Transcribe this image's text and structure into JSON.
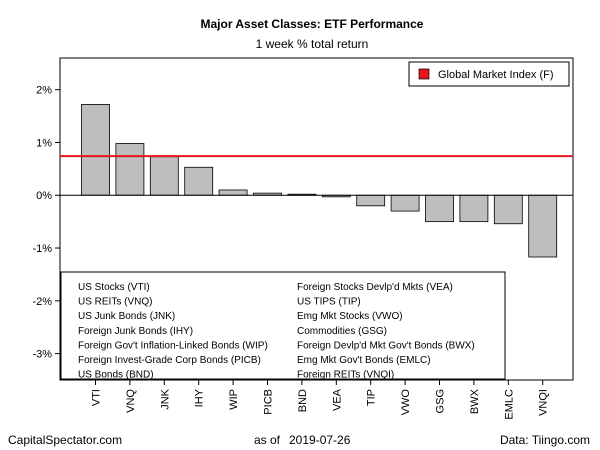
{
  "chart_data": {
    "type": "bar",
    "title": "Major Asset Classes: ETF Performance",
    "subtitle": "1 week % total return",
    "categories": [
      "VTI",
      "VNQ",
      "JNK",
      "IHY",
      "WIP",
      "PICB",
      "BND",
      "VEA",
      "TIP",
      "VWO",
      "GSG",
      "BWX",
      "EMLC",
      "VNQI"
    ],
    "values": [
      1.72,
      0.98,
      0.73,
      0.53,
      0.1,
      0.04,
      0.02,
      -0.03,
      -0.2,
      -0.3,
      -0.5,
      -0.5,
      -0.54,
      -1.17
    ],
    "ylim": [
      -3.5,
      2.6
    ],
    "yticks": [
      2,
      1,
      0,
      -1,
      -2,
      -3
    ],
    "ytick_labels": [
      "2%",
      "1%",
      "0%",
      "-1%",
      "-2%",
      "-3%"
    ],
    "bar_color": "#bebebe",
    "reference_line": {
      "label": "Global Market Index (F)",
      "value": 0.74,
      "color": "#e8141c"
    },
    "legend_placement": "top-right",
    "fund_legend": {
      "left": [
        "US Stocks (VTI)",
        "US REITs (VNQ)",
        "US Junk Bonds (JNK)",
        "Foreign Junk Bonds (IHY)",
        "Foreign Gov't Inflation-Linked Bonds (WIP)",
        "Foreign Invest-Grade Corp Bonds (PICB)",
        "US Bonds (BND)"
      ],
      "right": [
        "Foreign Stocks Devlp'd Mkts (VEA)",
        "US TIPS (TIP)",
        "Emg Mkt Stocks (VWO)",
        "Commodities (GSG)",
        "Foreign Devlp'd Mkt Gov't Bonds (BWX)",
        "Emg Mkt Gov't Bonds (EMLC)",
        "Foreign REITs (VNQI)"
      ]
    }
  },
  "footer": {
    "source_left": "CapitalSpectator.com",
    "as_of_label": "as of",
    "as_of_date": "2019-07-26",
    "source_right": "Data: Tiingo.com"
  }
}
